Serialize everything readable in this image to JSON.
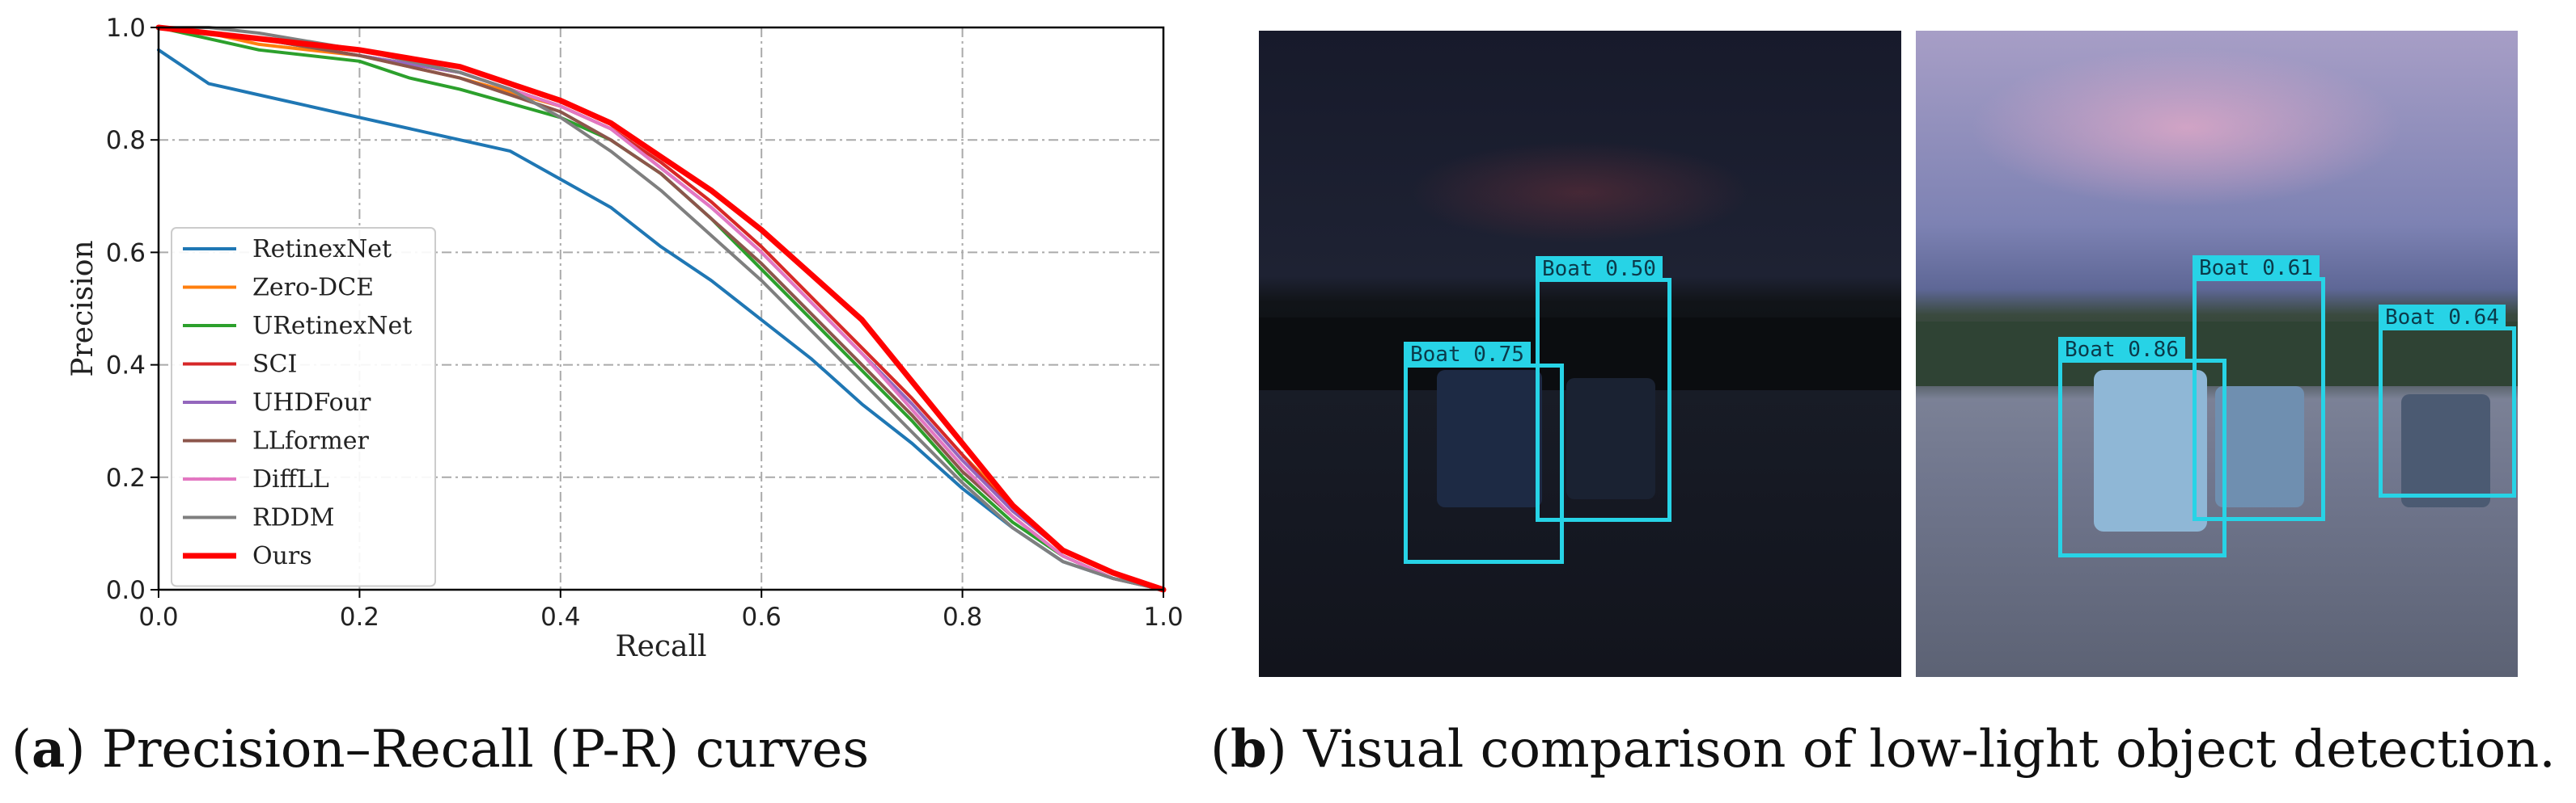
{
  "chart_data": {
    "type": "line",
    "xlabel": "Recall",
    "ylabel": "Precision",
    "xlim": [
      0.0,
      1.0
    ],
    "ylim": [
      0.0,
      1.0
    ],
    "xticks": [
      "0.0",
      "0.2",
      "0.4",
      "0.6",
      "0.8",
      "1.0"
    ],
    "yticks": [
      "0.0",
      "0.2",
      "0.4",
      "0.6",
      "0.8",
      "1.0"
    ],
    "grid": "dash-dot",
    "legend_position": "lower-left",
    "series": [
      {
        "name": "RetinexNet",
        "color": "#1f77b4",
        "x": [
          0,
          0.05,
          0.1,
          0.2,
          0.3,
          0.35,
          0.4,
          0.45,
          0.5,
          0.55,
          0.6,
          0.65,
          0.7,
          0.75,
          0.8,
          0.85,
          0.9,
          0.95,
          1.0
        ],
        "y": [
          0.96,
          0.9,
          0.88,
          0.84,
          0.8,
          0.78,
          0.73,
          0.68,
          0.61,
          0.55,
          0.48,
          0.41,
          0.33,
          0.26,
          0.18,
          0.11,
          0.05,
          0.02,
          0.0
        ]
      },
      {
        "name": "Zero-DCE",
        "color": "#ff7f0e",
        "x": [
          0,
          0.05,
          0.1,
          0.2,
          0.3,
          0.4,
          0.45,
          0.5,
          0.55,
          0.6,
          0.65,
          0.7,
          0.75,
          0.8,
          0.85,
          0.9,
          0.95,
          1.0
        ],
        "y": [
          1.0,
          0.99,
          0.97,
          0.95,
          0.91,
          0.86,
          0.82,
          0.76,
          0.69,
          0.61,
          0.52,
          0.43,
          0.34,
          0.24,
          0.15,
          0.07,
          0.03,
          0.0
        ]
      },
      {
        "name": "URetinexNet",
        "color": "#2ca02c",
        "x": [
          0,
          0.05,
          0.1,
          0.2,
          0.25,
          0.3,
          0.4,
          0.45,
          0.5,
          0.55,
          0.6,
          0.65,
          0.7,
          0.75,
          0.8,
          0.85,
          0.9,
          0.95,
          1.0
        ],
        "y": [
          1.0,
          0.98,
          0.96,
          0.94,
          0.91,
          0.89,
          0.84,
          0.8,
          0.74,
          0.66,
          0.57,
          0.48,
          0.39,
          0.3,
          0.2,
          0.12,
          0.06,
          0.02,
          0.0
        ]
      },
      {
        "name": "SCI",
        "color": "#d62728",
        "x": [
          0,
          0.05,
          0.1,
          0.2,
          0.3,
          0.4,
          0.45,
          0.5,
          0.55,
          0.6,
          0.65,
          0.7,
          0.75,
          0.8,
          0.85,
          0.9,
          0.95,
          1.0
        ],
        "y": [
          1.0,
          0.99,
          0.98,
          0.95,
          0.92,
          0.86,
          0.82,
          0.76,
          0.69,
          0.61,
          0.52,
          0.43,
          0.34,
          0.24,
          0.14,
          0.07,
          0.03,
          0.0
        ]
      },
      {
        "name": "UHDFour",
        "color": "#9467bd",
        "x": [
          0,
          0.05,
          0.1,
          0.2,
          0.3,
          0.4,
          0.45,
          0.5,
          0.55,
          0.6,
          0.65,
          0.7,
          0.75,
          0.8,
          0.85,
          0.9,
          0.95,
          1.0
        ],
        "y": [
          1.0,
          0.99,
          0.98,
          0.95,
          0.92,
          0.86,
          0.82,
          0.75,
          0.68,
          0.6,
          0.51,
          0.42,
          0.33,
          0.23,
          0.14,
          0.07,
          0.03,
          0.0
        ]
      },
      {
        "name": "LLformer",
        "color": "#8c564b",
        "x": [
          0,
          0.05,
          0.1,
          0.2,
          0.3,
          0.4,
          0.45,
          0.5,
          0.55,
          0.6,
          0.65,
          0.7,
          0.75,
          0.8,
          0.85,
          0.9,
          0.95,
          1.0
        ],
        "y": [
          1.0,
          0.99,
          0.98,
          0.95,
          0.91,
          0.85,
          0.8,
          0.74,
          0.66,
          0.58,
          0.49,
          0.4,
          0.31,
          0.21,
          0.13,
          0.06,
          0.02,
          0.0
        ]
      },
      {
        "name": "DiffLL",
        "color": "#e377c2",
        "x": [
          0,
          0.05,
          0.1,
          0.2,
          0.3,
          0.4,
          0.45,
          0.5,
          0.55,
          0.6,
          0.65,
          0.7,
          0.75,
          0.8,
          0.85,
          0.9,
          0.95,
          1.0
        ],
        "y": [
          1.0,
          0.99,
          0.98,
          0.96,
          0.92,
          0.86,
          0.82,
          0.75,
          0.68,
          0.6,
          0.51,
          0.42,
          0.32,
          0.22,
          0.13,
          0.06,
          0.02,
          0.0
        ]
      },
      {
        "name": "RDDM",
        "color": "#7f7f7f",
        "x": [
          0,
          0.05,
          0.1,
          0.2,
          0.3,
          0.35,
          0.4,
          0.45,
          0.5,
          0.55,
          0.6,
          0.65,
          0.7,
          0.75,
          0.8,
          0.85,
          0.9,
          0.95,
          1.0
        ],
        "y": [
          1.0,
          1.0,
          0.99,
          0.96,
          0.92,
          0.89,
          0.84,
          0.78,
          0.71,
          0.63,
          0.55,
          0.46,
          0.37,
          0.28,
          0.19,
          0.11,
          0.05,
          0.02,
          0.0
        ]
      },
      {
        "name": "Ours",
        "color": "#ff0000",
        "x": [
          0,
          0.05,
          0.1,
          0.2,
          0.3,
          0.35,
          0.4,
          0.45,
          0.5,
          0.55,
          0.6,
          0.65,
          0.7,
          0.75,
          0.8,
          0.85,
          0.9,
          0.95,
          1.0
        ],
        "y": [
          1.0,
          0.99,
          0.98,
          0.96,
          0.93,
          0.9,
          0.87,
          0.83,
          0.77,
          0.71,
          0.64,
          0.56,
          0.48,
          0.37,
          0.26,
          0.15,
          0.07,
          0.03,
          0.0
        ]
      }
    ]
  },
  "captions": {
    "a_tag": "a",
    "a_text": "Precision–Recall (P-R) curves",
    "b_tag": "b",
    "b_text": "Visual comparison of low-light object detection."
  },
  "detections": {
    "dark_image": [
      {
        "label": "Boat 0.50"
      },
      {
        "label": "Boat 0.75"
      }
    ],
    "enhanced_image": [
      {
        "label": "Boat 0.61"
      },
      {
        "label": "Boat 0.86"
      },
      {
        "label": "Boat 0.64"
      }
    ],
    "box_color": "#27d3e6"
  }
}
